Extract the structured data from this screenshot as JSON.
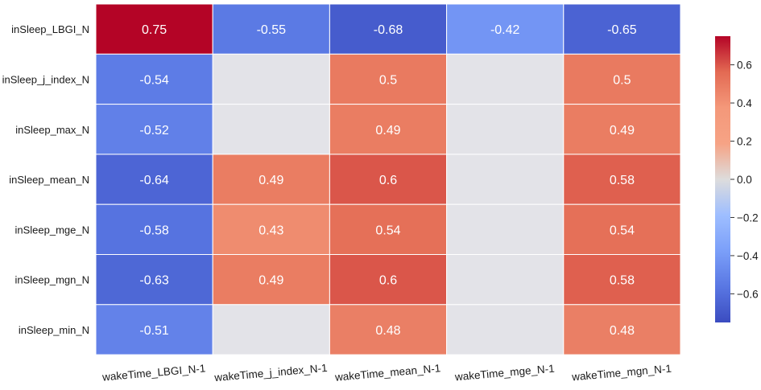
{
  "chart_data": {
    "type": "heatmap",
    "title": "",
    "xlabel": "",
    "ylabel": "",
    "rows": [
      "inSleep_LBGI_N",
      "inSleep_j_index_N",
      "inSleep_max_N",
      "inSleep_mean_N",
      "inSleep_mge_N",
      "inSleep_mgn_N",
      "inSleep_min_N"
    ],
    "columns": [
      "wakeTime_LBGI_N-1",
      "wakeTime_j_index_N-1",
      "wakeTime_mean_N-1",
      "wakeTime_mge_N-1",
      "wakeTime_mgn_N-1"
    ],
    "values": [
      [
        0.75,
        -0.55,
        -0.68,
        -0.42,
        -0.65
      ],
      [
        -0.54,
        null,
        0.5,
        null,
        0.5
      ],
      [
        -0.52,
        null,
        0.49,
        null,
        0.49
      ],
      [
        -0.64,
        0.49,
        0.6,
        null,
        0.58
      ],
      [
        -0.58,
        0.43,
        0.54,
        null,
        0.54
      ],
      [
        -0.63,
        0.49,
        0.6,
        null,
        0.58
      ],
      [
        -0.51,
        null,
        0.48,
        null,
        0.48
      ]
    ],
    "colormap": "coolwarm",
    "vmin": -0.75,
    "vmax": 0.75,
    "colorbar_ticks": [
      0.6,
      0.4,
      0.2,
      0.0,
      -0.2,
      -0.4,
      -0.6
    ],
    "colorbar_tick_labels": [
      "0.6",
      "0.4",
      "0.2",
      "0.0",
      "−0.2",
      "−0.4",
      "−0.6"
    ],
    "masked_color": "#e3e3e8"
  }
}
